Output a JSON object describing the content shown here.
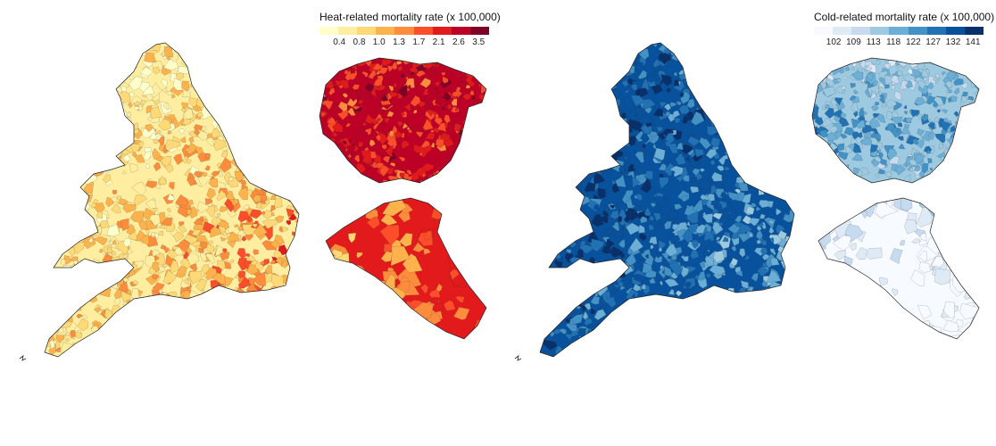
{
  "heat": {
    "legend_title": "Heat-related mortality rate (x 100,000)",
    "tick_labels": [
      "0.4",
      "0.8",
      "1.0",
      "1.3",
      "1.7",
      "2.1",
      "2.6",
      "3.5"
    ],
    "colors": [
      "#ffffcc",
      "#ffeda0",
      "#fed976",
      "#feb24c",
      "#fd8d3c",
      "#fc4e2a",
      "#e31a1c",
      "#bd0026",
      "#800026"
    ]
  },
  "cold": {
    "legend_title": "Cold-related mortality rate (x 100,000)",
    "tick_labels": [
      "102",
      "109",
      "113",
      "118",
      "122",
      "127",
      "132",
      "141"
    ],
    "colors": [
      "#f7fbff",
      "#deebf7",
      "#c6dbef",
      "#9ecae1",
      "#6baed6",
      "#4292c6",
      "#2171b5",
      "#08519c",
      "#08306b"
    ]
  }
}
